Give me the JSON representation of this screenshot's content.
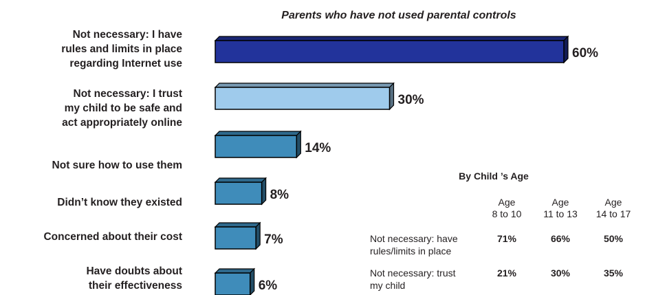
{
  "chart_data": {
    "type": "bar",
    "orientation": "horizontal",
    "title": "Parents who have not used parental controls",
    "categories": [
      [
        "Not necessary:  I have",
        "rules and limits in place",
        "regarding Internet use"
      ],
      [
        "Not necessary: I trust",
        "my child to be safe and",
        "act appropriately online"
      ],
      [
        "Not sure how to use them"
      ],
      [
        "Didn’t know they existed"
      ],
      [
        "Concerned about their cost"
      ],
      [
        "Have doubts about",
        "their effectiveness"
      ]
    ],
    "values": [
      60,
      30,
      14,
      8,
      7,
      6
    ],
    "value_labels": [
      "60%",
      "30%",
      "14%",
      "8%",
      "7%",
      "6%"
    ],
    "bar_colors": [
      "#22339b",
      "#9fcbec",
      "#3f8cba",
      "#3f8cba",
      "#3f8cba",
      "#3f8cba"
    ],
    "xlim": [
      0,
      60
    ],
    "grid": false,
    "legend": "none"
  },
  "table": {
    "title": "By Child ’s Age",
    "columns": [
      [
        "Age",
        "8 to 10"
      ],
      [
        "Age",
        "11 to 13"
      ],
      [
        "Age",
        "14 to 17"
      ]
    ],
    "rows": [
      {
        "label": [
          "Not necessary: have",
          "rules/limits in place"
        ],
        "values": [
          "71%",
          "66%",
          "50%"
        ]
      },
      {
        "label": [
          "Not necessary: trust",
          "my child"
        ],
        "values": [
          "21%",
          "30%",
          "35%"
        ]
      }
    ]
  }
}
